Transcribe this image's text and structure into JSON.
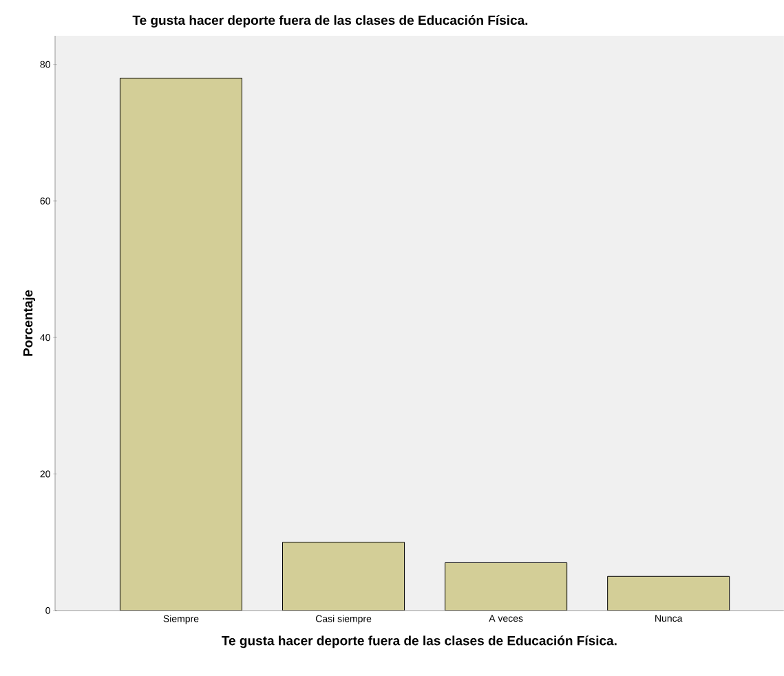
{
  "chart_data": {
    "type": "bar",
    "title": "Te gusta hacer deporte fuera de las clases de Educación Física.",
    "xlabel": "Te gusta hacer deporte fuera de las clases de Educación Física.",
    "ylabel": "Porcentaje",
    "categories": [
      "Siempre",
      "Casi siempre",
      "A veces",
      "Nunca"
    ],
    "values": [
      78,
      10,
      7,
      5
    ],
    "color": "#d3ce97",
    "ylim": [
      0,
      84.2
    ],
    "yticks": [
      0,
      20,
      40,
      60,
      80
    ]
  }
}
